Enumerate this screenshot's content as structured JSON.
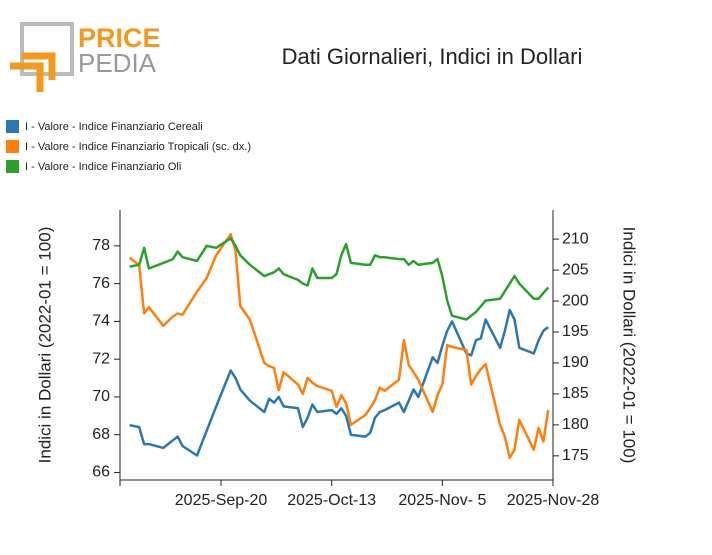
{
  "logo": {
    "top": "PRICE",
    "bottom": "PEDIA"
  },
  "chart_data": {
    "type": "line",
    "title": "Dati Giornalieri, Indici in Dollari",
    "ylabel": "Indici in Dollari (2022-01 = 100)",
    "y2label": "Indici in Dollari (2022-01 = 100)",
    "x": [
      "2025-09-01",
      "2025-09-03",
      "2025-09-04",
      "2025-09-05",
      "2025-09-08",
      "2025-09-10",
      "2025-09-11",
      "2025-09-12",
      "2025-09-15",
      "2025-09-17",
      "2025-09-19",
      "2025-09-22",
      "2025-09-23",
      "2025-09-24",
      "2025-09-26",
      "2025-09-29",
      "2025-09-30",
      "2025-10-01",
      "2025-10-02",
      "2025-10-03",
      "2025-10-06",
      "2025-10-07",
      "2025-10-08",
      "2025-10-09",
      "2025-10-10",
      "2025-10-13",
      "2025-10-14",
      "2025-10-15",
      "2025-10-16",
      "2025-10-17",
      "2025-10-20",
      "2025-10-21",
      "2025-10-22",
      "2025-10-23",
      "2025-10-24",
      "2025-10-27",
      "2025-10-28",
      "2025-10-29",
      "2025-10-30",
      "2025-10-31",
      "2025-11-03",
      "2025-11-04",
      "2025-11-05",
      "2025-11-06",
      "2025-11-07",
      "2025-11-10",
      "2025-11-11",
      "2025-11-12",
      "2025-11-13",
      "2025-11-14",
      "2025-11-17",
      "2025-11-18",
      "2025-11-19",
      "2025-11-20",
      "2025-11-21",
      "2025-11-24",
      "2025-11-25",
      "2025-11-26",
      "2025-11-27"
    ],
    "xlim": [
      "2025-08-30",
      "2025-11-28"
    ],
    "xticks": [
      {
        "value": "2025-09-20",
        "label": "2025-Sep-20"
      },
      {
        "value": "2025-10-13",
        "label": "2025-Oct-13"
      },
      {
        "value": "2025-11-05",
        "label": "2025-Nov- 5"
      },
      {
        "value": "2025-11-28",
        "label": "2025-Nov-28"
      }
    ],
    "ylim": [
      65.6,
      79.9
    ],
    "yticks": [
      66,
      68,
      70,
      72,
      74,
      76,
      78
    ],
    "y2lim": [
      171.1,
      214.7
    ],
    "y2ticks": [
      175,
      180,
      185,
      190,
      195,
      200,
      205,
      210
    ],
    "series": [
      {
        "name": "I - Valore - Indice Finanziario Cereali",
        "color": "#2a77b4",
        "axis": "y",
        "values": [
          68.5,
          68.4,
          67.5,
          67.5,
          67.3,
          67.7,
          67.9,
          67.4,
          66.9,
          68.2,
          69.5,
          71.4,
          71.0,
          70.4,
          69.8,
          69.2,
          69.9,
          69.7,
          70.0,
          69.5,
          69.4,
          68.4,
          68.9,
          69.6,
          69.2,
          69.3,
          69.1,
          69.4,
          69.0,
          68.0,
          67.9,
          68.1,
          68.9,
          69.2,
          69.3,
          69.7,
          69.2,
          69.8,
          70.4,
          70.0,
          72.1,
          71.8,
          72.7,
          73.5,
          74.0,
          72.3,
          72.2,
          73.0,
          73.1,
          74.1,
          72.6,
          73.5,
          74.6,
          74.1,
          72.6,
          72.3,
          73.0,
          73.5,
          73.7
        ]
      },
      {
        "name": "I - Valore - Indice Finanziario Tropicali (sc. dx.)",
        "color": "#ff7f0e",
        "axis": "y2",
        "values": [
          207,
          205.8,
          198,
          199,
          196,
          197.5,
          198,
          197.8,
          201.5,
          203.7,
          207.4,
          210.8,
          208.2,
          199.2,
          197,
          190,
          189.5,
          189.2,
          185.6,
          188.5,
          186.5,
          185,
          187.6,
          186.8,
          186.3,
          185.5,
          182.9,
          184.8,
          183.5,
          180,
          181.6,
          182.7,
          184,
          186,
          185.5,
          187.3,
          193.7,
          189.7,
          188.5,
          187.3,
          182.1,
          184.8,
          186.5,
          192.9,
          192.6,
          192.1,
          186.5,
          187.9,
          189,
          189.8,
          180,
          178.1,
          174.7,
          176,
          180.8,
          176,
          179.5,
          177.3,
          182.4
        ]
      },
      {
        "name": "I - Valore - Indice Finanziario Oli",
        "color": "#2ca02c",
        "axis": "y",
        "values": [
          76.9,
          77.0,
          77.9,
          76.8,
          77.1,
          77.3,
          77.7,
          77.4,
          77.2,
          78.0,
          77.9,
          78.4,
          78.0,
          77.5,
          77.0,
          76.4,
          76.5,
          76.6,
          76.8,
          76.5,
          76.2,
          76.0,
          75.9,
          76.8,
          76.3,
          76.3,
          76.5,
          77.5,
          78.1,
          77.1,
          77.0,
          77.0,
          77.5,
          77.4,
          77.4,
          77.3,
          77.3,
          77.0,
          77.2,
          77.0,
          77.1,
          77.3,
          76.4,
          75.1,
          74.3,
          74.1,
          74.3,
          74.5,
          74.8,
          75.1,
          75.2,
          75.6,
          76.0,
          76.4,
          76.0,
          75.2,
          75.2,
          75.5,
          75.8
        ]
      }
    ]
  }
}
